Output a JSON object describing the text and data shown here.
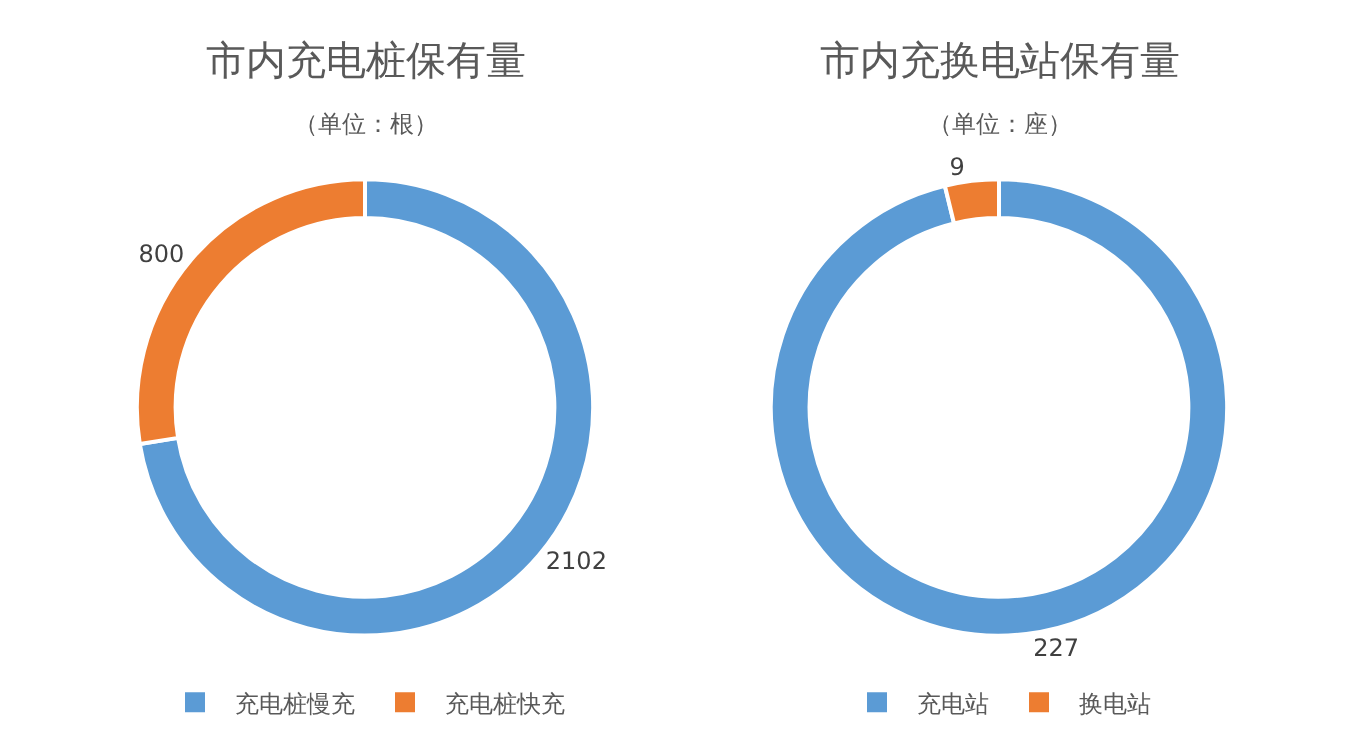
{
  "chart_data": [
    {
      "type": "donut",
      "title": "市内充电桩保有量",
      "subtitle": "（单位：根）",
      "categories": [
        "充电桩慢充",
        "充电桩快充"
      ],
      "values": [
        2102,
        800
      ],
      "colors": [
        "#5b9bd5",
        "#ed7d31"
      ],
      "data_labels": true,
      "legend": "bottom"
    },
    {
      "type": "donut",
      "title": "市内充换电站保有量",
      "subtitle": "（单位：座）",
      "categories": [
        "充电站",
        "换电站"
      ],
      "values": [
        227,
        9
      ],
      "colors": [
        "#5b9bd5",
        "#ed7d31"
      ],
      "data_labels": true,
      "legend": "bottom"
    }
  ]
}
